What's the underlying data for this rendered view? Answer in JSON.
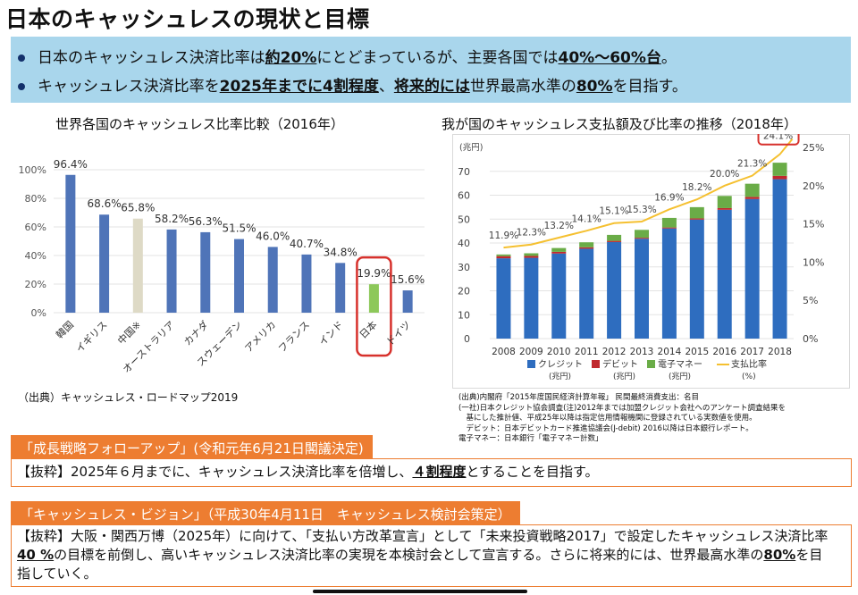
{
  "title": "日本のキャッシュレスの現状と目標",
  "summary": {
    "line1": {
      "a": "日本のキャッシュレス決済比率は",
      "b": "約20%",
      "c": "にとどまっているが、主要各国では",
      "d": "40%〜60%台",
      "e": "。"
    },
    "line2": {
      "a": "キャッシュレス決済比率を",
      "b": "2025年までに4割程度",
      "c": "、",
      "d": "将来的には",
      "e": "世界最高水準の",
      "f": "80%",
      "g": "を目指す。"
    }
  },
  "left_source": "（出典）キャッシュレス・ロードマップ2019",
  "right_source": [
    "(出典)内閣府「2015年度国民経済計算年報」 民間最終消費支出：名目",
    "(一社)日本クレジット協会調査(注)2012年までは加盟クレジット会社へのアンケート調査結果を",
    "　基にした推計値、平成25年以降は指定信用情報機関に登録されている実数値を使用。",
    "　デビット：日本デビットカード推進協議会(J-debit) 2016以降は日本銀行レポート。",
    "電子マネー：日本銀行「電子マネー計数」"
  ],
  "section1": {
    "head": "「成長戦略フォローアップ」(令和元年6月21日閣議決定)",
    "body_a": "【抜粋】2025年６月までに、キャッシュレス決済比率を倍増し、",
    "body_b": "４割程度",
    "body_c": "とすることを目指す。"
  },
  "section2": {
    "head": "「キャッシュレス・ビジョン」（平成30年4月11日　キャッシュレス検討会策定）",
    "line1": "【抜粋】大阪・関西万博（2025年）に向けて、「支払い方改革宣言」として「未来投資戦略2017」で設定したキャッシュレス決済比率",
    "line2_a": "40 %",
    "line2_b": "の目標を前倒し、高いキャッシュレス決済比率の実現を本検討会として宣言する。さらに将来的には、世界最高水準の",
    "line2_c": "80%",
    "line2_d": "を目",
    "line3": "指していく。"
  },
  "colors": {
    "bar_blue": "#4f74b8",
    "bar_beige": "#dedac6",
    "bar_green": "#8dc85a",
    "highlight": "#d7312c",
    "credit": "#2e6dbf",
    "debit": "#c0282d",
    "emoney": "#6aac47",
    "ratio": "#f5c030",
    "orange": "#ed7d31",
    "summary_bg": "#a9d6ec"
  },
  "chart_data": [
    {
      "type": "bar",
      "title": "世界各国のキャッシュレス比率比較（2016年）",
      "categories": [
        "韓国",
        "イギリス",
        "中国※",
        "オーストラリア",
        "カナダ",
        "スウェーデン",
        "アメリカ",
        "フランス",
        "インド",
        "日本",
        "ドイツ"
      ],
      "values": [
        96.4,
        68.6,
        65.8,
        58.2,
        56.3,
        51.5,
        46.0,
        40.7,
        34.8,
        19.9,
        15.6
      ],
      "value_labels": [
        "96.4%",
        "68.6%",
        "65.8%",
        "58.2%",
        "56.3%",
        "51.5%",
        "46.0%",
        "40.7%",
        "34.8%",
        "19.9%",
        "15.6%"
      ],
      "yticks": [
        "0%",
        "20%",
        "40%",
        "60%",
        "80%",
        "100%"
      ],
      "ylim": [
        0,
        100
      ],
      "highlight": "日本"
    },
    {
      "type": "bar",
      "stacked": true,
      "title": "我が国のキャッシュレス支払額及び比率の推移（2018年）",
      "x": [
        "2008",
        "2009",
        "2010",
        "2011",
        "2012",
        "2013",
        "2014",
        "2015",
        "2016",
        "2017",
        "2018"
      ],
      "series": [
        {
          "name": "クレジット",
          "unit": "(兆円)",
          "values": [
            33.6,
            33.8,
            35.6,
            37.6,
            40.4,
            41.8,
            46.1,
            49.8,
            53.9,
            58.4,
            66.7
          ]
        },
        {
          "name": "デビット",
          "unit": "(兆円)",
          "values": [
            0.9,
            0.8,
            0.7,
            0.6,
            0.5,
            0.4,
            0.4,
            0.5,
            0.7,
            0.9,
            1.4
          ]
        },
        {
          "name": "電子マネー",
          "unit": "(兆円)",
          "values": [
            0.7,
            1.1,
            1.6,
            2.1,
            2.5,
            3.3,
            4.0,
            4.7,
            5.1,
            5.5,
            5.5
          ]
        }
      ],
      "line": {
        "name": "支払比率",
        "unit": "(%)",
        "values": [
          11.9,
          12.3,
          13.2,
          14.1,
          15.1,
          15.3,
          16.9,
          18.2,
          20.0,
          21.3,
          24.1
        ],
        "labels": [
          "11.9%",
          "12.3%",
          "13.2%",
          "14.1%",
          "15.1%",
          "15.3%",
          "16.9%",
          "18.2%",
          "20.0%",
          "21.3%",
          "24.1%"
        ]
      },
      "y_left_label": "(兆円)",
      "y_left_ticks": [
        "0",
        "10",
        "20",
        "30",
        "40",
        "50",
        "60",
        "70"
      ],
      "ylim_left": [
        0,
        80
      ],
      "y_right_ticks": [
        "0%",
        "5%",
        "10%",
        "15%",
        "20%",
        "25%"
      ],
      "ylim_right": [
        0,
        25
      ],
      "highlight": "24.1%"
    }
  ]
}
